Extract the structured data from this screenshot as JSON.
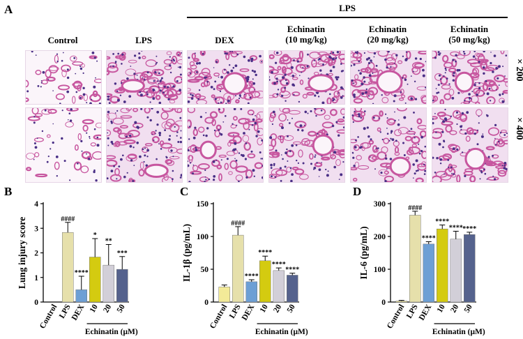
{
  "panel_a": {
    "letter": "A",
    "group_label": "LPS",
    "columns": [
      "Control",
      "LPS",
      "DEX",
      "Echinatin\n(10 mg/kg)",
      "Echinatin\n(20 mg/kg)",
      "Echinatin\n(50 mg/kg)"
    ],
    "magnifications": [
      "× 200",
      "× 400"
    ],
    "tile_colors": {
      "background": "#f1dff0",
      "tissue": "#c7569f",
      "nuclei": "#4a2f86",
      "space": "#fbf5fa"
    }
  },
  "chart_data": [
    {
      "letter": "B",
      "type": "bar",
      "ylabel": "Lung injury score",
      "ylim": [
        0,
        4
      ],
      "yticks": [
        0,
        1,
        2,
        3,
        4
      ],
      "categories": [
        "Control",
        "LPS",
        "DEX",
        "10",
        "20",
        "50"
      ],
      "values": [
        0,
        2.83,
        0.5,
        1.83,
        1.5,
        1.33
      ],
      "errors": [
        0,
        0.41,
        0.55,
        0.75,
        0.84,
        0.52
      ],
      "sig": [
        "",
        "####",
        "****",
        "*",
        "**",
        "***"
      ],
      "colors": [
        "#f3ea98",
        "#e6e0ab",
        "#6d9fd5",
        "#d4cb10",
        "#d2cfd8",
        "#55628d"
      ],
      "bracket_label": "Echinatin (μM)"
    },
    {
      "letter": "C",
      "type": "bar",
      "ylabel": "IL-1β (pg/mL)",
      "ylim": [
        0,
        150
      ],
      "yticks": [
        0,
        50,
        100,
        150
      ],
      "categories": [
        "Control",
        "LPS",
        "DEX",
        "10",
        "20",
        "50"
      ],
      "values": [
        23,
        102,
        31,
        63,
        48,
        41
      ],
      "errors": [
        3,
        13,
        3,
        7,
        4,
        3
      ],
      "sig": [
        "",
        "####",
        "****",
        "****",
        "****",
        "****"
      ],
      "colors": [
        "#f3ea98",
        "#e6e0ab",
        "#6d9fd5",
        "#d4cb10",
        "#d2cfd8",
        "#55628d"
      ],
      "bracket_label": "Echinatin (μM)"
    },
    {
      "letter": "D",
      "type": "bar",
      "ylabel": "IL-6 (pg/mL)",
      "ylim": [
        0,
        300
      ],
      "yticks": [
        0,
        100,
        200,
        300
      ],
      "categories": [
        "Control",
        "LPS",
        "DEX",
        "10",
        "20",
        "50"
      ],
      "values": [
        3,
        265,
        177,
        223,
        192,
        206
      ],
      "errors": [
        2,
        12,
        7,
        12,
        24,
        7
      ],
      "sig": [
        "",
        "####",
        "****",
        "****",
        "****",
        "****"
      ],
      "colors": [
        "#f3ea98",
        "#e6e0ab",
        "#6d9fd5",
        "#d4cb10",
        "#d2cfd8",
        "#55628d"
      ],
      "bracket_label": "Echinatin (μM)"
    }
  ]
}
